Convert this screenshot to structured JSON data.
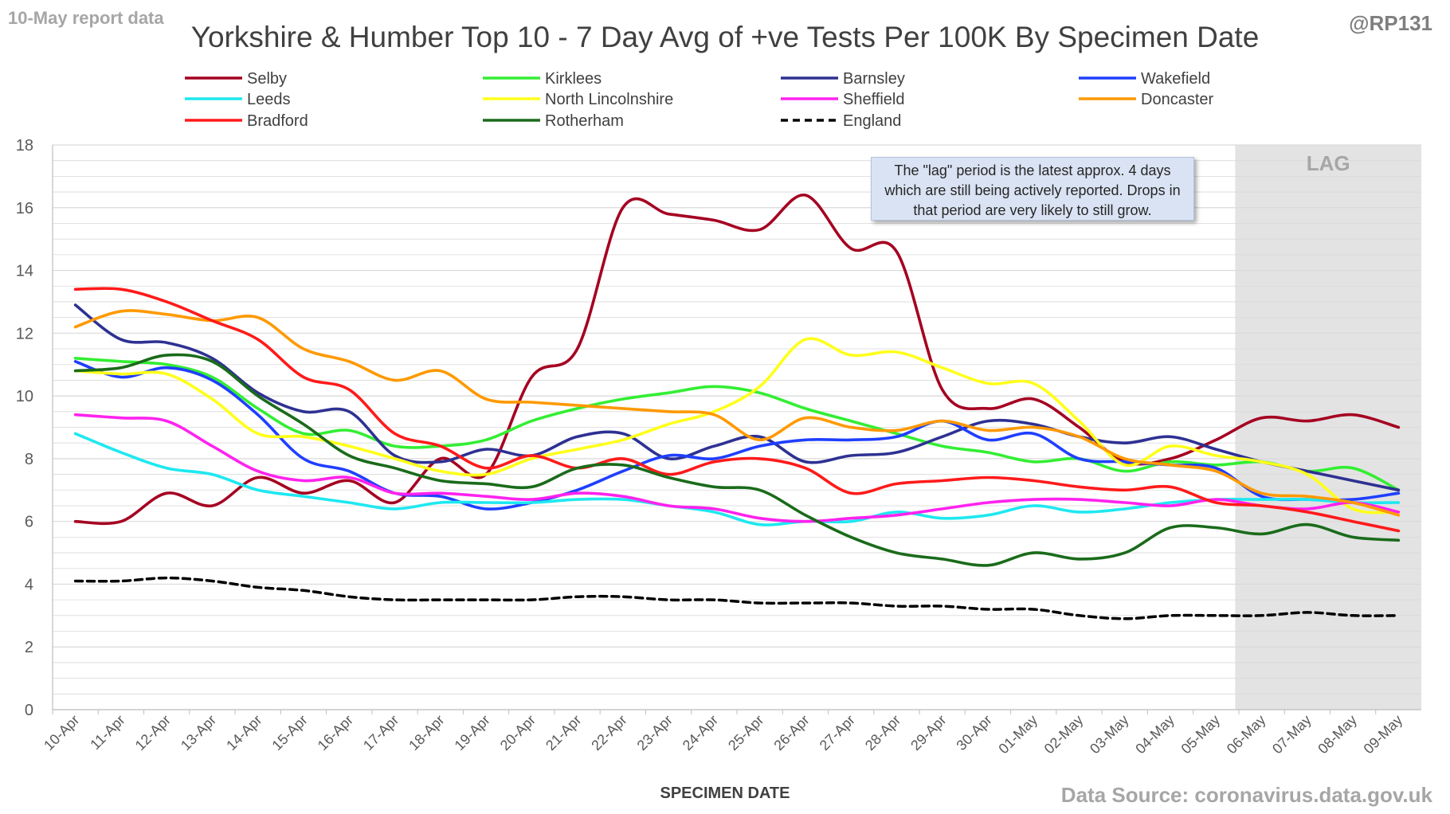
{
  "header": {
    "report_label": "10-May report data",
    "handle": "@RP131",
    "source": "Data Source: coronavirus.data.gov.uk"
  },
  "note": {
    "text": "The \"lag\" period is the latest approx. 4 days which are still being actively reported.  Drops in that period are very likely to still grow."
  },
  "colors": {
    "lag_band": "#d9d9d9",
    "grid": "#d9d9d9",
    "axis_text": "#595959"
  },
  "chart_data": {
    "type": "line",
    "title": "Yorkshire & Humber Top 10 - 7 Day Avg of +ve Tests Per 100K By Specimen Date",
    "xlabel": "SPECIMEN DATE",
    "ylabel": "",
    "ylim": [
      0,
      18
    ],
    "y_ticks": [
      0,
      2,
      4,
      6,
      8,
      10,
      12,
      14,
      16,
      18
    ],
    "grid": true,
    "legend_position": "top",
    "lag_label": "LAG",
    "lag_range": [
      "06-May",
      "09-May"
    ],
    "categories": [
      "10-Apr",
      "11-Apr",
      "12-Apr",
      "13-Apr",
      "14-Apr",
      "15-Apr",
      "16-Apr",
      "17-Apr",
      "18-Apr",
      "19-Apr",
      "20-Apr",
      "21-Apr",
      "22-Apr",
      "23-Apr",
      "24-Apr",
      "25-Apr",
      "26-Apr",
      "27-Apr",
      "28-Apr",
      "29-Apr",
      "30-Apr",
      "01-May",
      "02-May",
      "03-May",
      "04-May",
      "05-May",
      "06-May",
      "07-May",
      "08-May",
      "09-May"
    ],
    "series": [
      {
        "name": "Selby",
        "color": "#a50021",
        "dashed": false,
        "values": [
          6.0,
          6.0,
          6.9,
          6.5,
          7.4,
          6.9,
          7.3,
          6.6,
          8.0,
          7.5,
          10.6,
          11.5,
          16.0,
          15.8,
          15.6,
          15.3,
          16.4,
          14.7,
          14.6,
          10.2,
          9.6,
          9.9,
          9.0,
          7.9,
          8.0,
          8.6,
          9.3,
          9.2,
          9.4,
          9.0
        ]
      },
      {
        "name": "Kirklees",
        "color": "#33ee33",
        "dashed": false,
        "values": [
          11.2,
          11.1,
          11.0,
          10.6,
          9.6,
          8.8,
          8.9,
          8.4,
          8.4,
          8.6,
          9.2,
          9.6,
          9.9,
          10.1,
          10.3,
          10.1,
          9.6,
          9.2,
          8.8,
          8.4,
          8.2,
          7.9,
          8.0,
          7.6,
          7.9,
          7.8,
          7.9,
          7.6,
          7.7,
          7.0
        ]
      },
      {
        "name": "Barnsley",
        "color": "#2e3192",
        "dashed": false,
        "values": [
          12.9,
          11.8,
          11.7,
          11.2,
          10.1,
          9.5,
          9.5,
          8.1,
          7.9,
          8.3,
          8.1,
          8.7,
          8.8,
          8.0,
          8.4,
          8.7,
          7.9,
          8.1,
          8.2,
          8.7,
          9.2,
          9.1,
          8.7,
          8.5,
          8.7,
          8.3,
          7.9,
          7.6,
          7.3,
          7.0
        ]
      },
      {
        "name": "Wakefield",
        "color": "#1f3fff",
        "dashed": false,
        "values": [
          11.1,
          10.6,
          10.9,
          10.5,
          9.4,
          8.0,
          7.6,
          6.9,
          6.8,
          6.4,
          6.6,
          7.0,
          7.6,
          8.1,
          8.0,
          8.4,
          8.6,
          8.6,
          8.7,
          9.2,
          8.6,
          8.8,
          8.0,
          7.9,
          7.8,
          7.7,
          6.8,
          6.7,
          6.7,
          6.9
        ]
      },
      {
        "name": "Leeds",
        "color": "#1ee8f0",
        "dashed": false,
        "values": [
          8.8,
          8.2,
          7.7,
          7.5,
          7.0,
          6.8,
          6.6,
          6.4,
          6.6,
          6.6,
          6.6,
          6.7,
          6.7,
          6.5,
          6.3,
          5.9,
          6.0,
          6.0,
          6.3,
          6.1,
          6.2,
          6.5,
          6.3,
          6.4,
          6.6,
          6.7,
          6.7,
          6.7,
          6.6,
          6.6
        ]
      },
      {
        "name": "North Lincolnshire",
        "color": "#ffff1a",
        "dashed": false,
        "values": [
          10.8,
          10.7,
          10.7,
          9.9,
          8.8,
          8.7,
          8.4,
          8.0,
          7.6,
          7.5,
          8.0,
          8.3,
          8.6,
          9.1,
          9.5,
          10.3,
          11.8,
          11.3,
          11.4,
          10.9,
          10.4,
          10.4,
          9.2,
          7.8,
          8.4,
          8.1,
          7.9,
          7.5,
          6.4,
          6.3
        ]
      },
      {
        "name": "Sheffield",
        "color": "#ff22ee",
        "dashed": false,
        "values": [
          9.4,
          9.3,
          9.2,
          8.4,
          7.6,
          7.3,
          7.4,
          6.9,
          6.9,
          6.8,
          6.7,
          6.9,
          6.8,
          6.5,
          6.4,
          6.1,
          6.0,
          6.1,
          6.2,
          6.4,
          6.6,
          6.7,
          6.7,
          6.6,
          6.5,
          6.7,
          6.5,
          6.4,
          6.6,
          6.3
        ]
      },
      {
        "name": "Doncaster",
        "color": "#ff9900",
        "dashed": false,
        "values": [
          12.2,
          12.7,
          12.6,
          12.4,
          12.5,
          11.5,
          11.1,
          10.5,
          10.8,
          9.9,
          9.8,
          9.7,
          9.6,
          9.5,
          9.4,
          8.6,
          9.3,
          9.0,
          8.9,
          9.2,
          8.9,
          9.0,
          8.7,
          8.0,
          7.8,
          7.6,
          6.9,
          6.8,
          6.6,
          6.2
        ]
      },
      {
        "name": "Bradford",
        "color": "#ff1a1a",
        "dashed": false,
        "values": [
          13.4,
          13.4,
          13.0,
          12.4,
          11.8,
          10.6,
          10.2,
          8.8,
          8.4,
          7.7,
          8.1,
          7.7,
          8.0,
          7.5,
          7.9,
          8.0,
          7.7,
          6.9,
          7.2,
          7.3,
          7.4,
          7.3,
          7.1,
          7.0,
          7.1,
          6.6,
          6.5,
          6.3,
          6.0,
          5.7
        ]
      },
      {
        "name": "Rotherham",
        "color": "#1a6b1a",
        "dashed": false,
        "values": [
          10.8,
          10.9,
          11.3,
          11.1,
          10.0,
          9.1,
          8.1,
          7.7,
          7.3,
          7.2,
          7.1,
          7.7,
          7.8,
          7.4,
          7.1,
          7.0,
          6.2,
          5.5,
          5.0,
          4.8,
          4.6,
          5.0,
          4.8,
          5.0,
          5.8,
          5.8,
          5.6,
          5.9,
          5.5,
          5.4
        ]
      },
      {
        "name": "England",
        "color": "#000000",
        "dashed": true,
        "values": [
          4.1,
          4.1,
          4.2,
          4.1,
          3.9,
          3.8,
          3.6,
          3.5,
          3.5,
          3.5,
          3.5,
          3.6,
          3.6,
          3.5,
          3.5,
          3.4,
          3.4,
          3.4,
          3.3,
          3.3,
          3.2,
          3.2,
          3.0,
          2.9,
          3.0,
          3.0,
          3.0,
          3.1,
          3.0,
          3.0
        ]
      }
    ]
  }
}
